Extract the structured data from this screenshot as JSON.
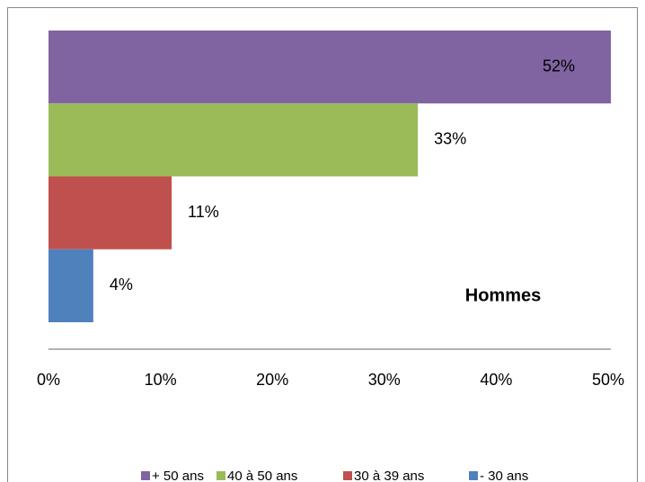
{
  "chart_data": {
    "type": "bar",
    "orientation": "horizontal",
    "annotation": "Hommes",
    "series": [
      {
        "name": "+ 50 ans",
        "color": "#8064a2",
        "values": [
          52
        ],
        "value_labels": [
          "52%"
        ]
      },
      {
        "name": "40 à 50 ans",
        "color": "#9bbb59",
        "values": [
          33
        ],
        "value_labels": [
          "33%"
        ]
      },
      {
        "name": "30 à 39 ans",
        "color": "#c0504d",
        "values": [
          11
        ],
        "value_labels": [
          "11%"
        ]
      },
      {
        "name": "- 30 ans",
        "color": "#4f81bd",
        "values": [
          4
        ],
        "value_labels": [
          "4%"
        ]
      }
    ],
    "xlim": [
      0,
      50
    ],
    "xticks": [
      {
        "value": 0,
        "label": "0%"
      },
      {
        "value": 10,
        "label": "10%"
      },
      {
        "value": 20,
        "label": "20%"
      },
      {
        "value": 30,
        "label": "30%"
      },
      {
        "value": 40,
        "label": "40%"
      },
      {
        "value": 50,
        "label": "50%"
      }
    ],
    "grid": false,
    "legend": "bottom"
  }
}
